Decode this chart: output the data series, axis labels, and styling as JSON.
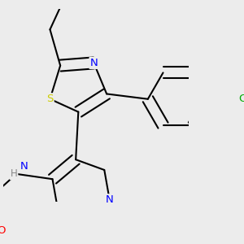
{
  "background_color": "#ececec",
  "atom_colors": {
    "S": "#cccc00",
    "N": "#0000ff",
    "O": "#ff0000",
    "Cl": "#00aa00",
    "C": "#000000",
    "H": "#888888"
  },
  "bond_color": "#000000",
  "bond_width": 1.5,
  "font_size": 9.5,
  "fig_size": [
    3.0,
    3.0
  ],
  "dpi": 100
}
